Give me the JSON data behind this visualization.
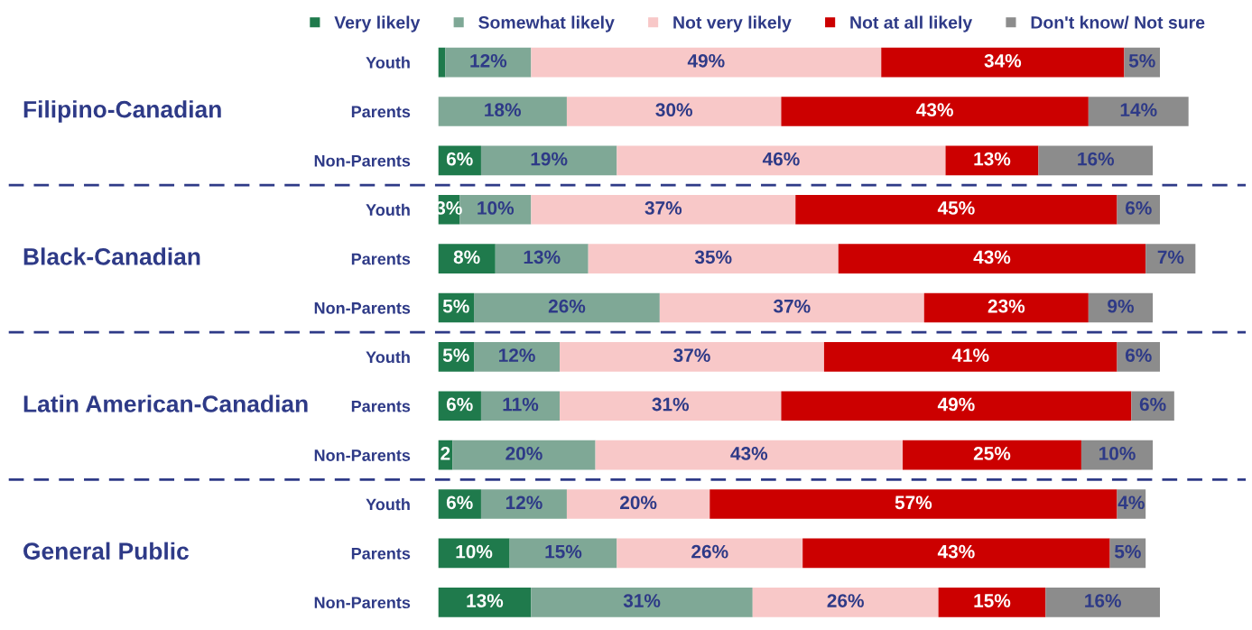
{
  "chart_data": {
    "type": "bar",
    "orientation": "horizontal",
    "stacked": true,
    "legend": "top",
    "tick_labels": "y",
    "grid": false,
    "categories": [
      "Youth",
      "Parents",
      "Non-Parents",
      "Youth",
      "Parents",
      "Non-Parents",
      "Youth",
      "Parents",
      "Non-Parents",
      "Youth",
      "Parents",
      "Non-Parents"
    ],
    "annotations": [
      "Filipino-Canadian",
      "Black-Canadian",
      "Latin American-Canadian",
      "General Public"
    ],
    "series": [
      {
        "name": "Very likely",
        "color": "#1f7a4c",
        "values": [
          1,
          null,
          6,
          3,
          8,
          5,
          5,
          6,
          2,
          6,
          10,
          13
        ],
        "value_labels": [
          null,
          null,
          "6%",
          "3%",
          "8%",
          "5%",
          "5%",
          "6%",
          "2",
          "6%",
          "10%",
          "13%"
        ]
      },
      {
        "name": "Somewhat likely",
        "color": "#7fa896",
        "values": [
          12,
          18,
          19,
          10,
          13,
          26,
          12,
          11,
          20,
          12,
          15,
          31
        ],
        "value_labels": [
          "12%",
          "18%",
          "19%",
          "10%",
          "13%",
          "26%",
          "12%",
          "11%",
          "20%",
          "12%",
          "15%",
          "31%"
        ]
      },
      {
        "name": "Not very likely",
        "color": "#f8c8c8",
        "values": [
          49,
          30,
          46,
          37,
          35,
          37,
          37,
          31,
          43,
          20,
          26,
          26
        ],
        "value_labels": [
          "49%",
          "30%",
          "46%",
          "37%",
          "35%",
          "37%",
          "37%",
          "31%",
          "43%",
          "20%",
          "26%",
          "26%"
        ]
      },
      {
        "name": "Not at all likely",
        "color": "#cc0000",
        "values": [
          34,
          43,
          13,
          45,
          43,
          23,
          41,
          49,
          25,
          57,
          43,
          15
        ],
        "value_labels": [
          "34%",
          "43%",
          "13%",
          "45%",
          "43%",
          "23%",
          "41%",
          "49%",
          "25%",
          "57%",
          "43%",
          "15%"
        ]
      },
      {
        "name": "Don't know/ Not sure",
        "color": "#8c8c8c",
        "values": [
          5,
          14,
          16,
          6,
          7,
          9,
          6,
          6,
          10,
          4,
          5,
          16
        ],
        "value_labels": [
          "5%",
          "14%",
          "16%",
          "6%",
          "7%",
          "9%",
          "6%",
          "6%",
          "10%",
          "4%",
          "5%",
          "16%"
        ]
      }
    ]
  }
}
